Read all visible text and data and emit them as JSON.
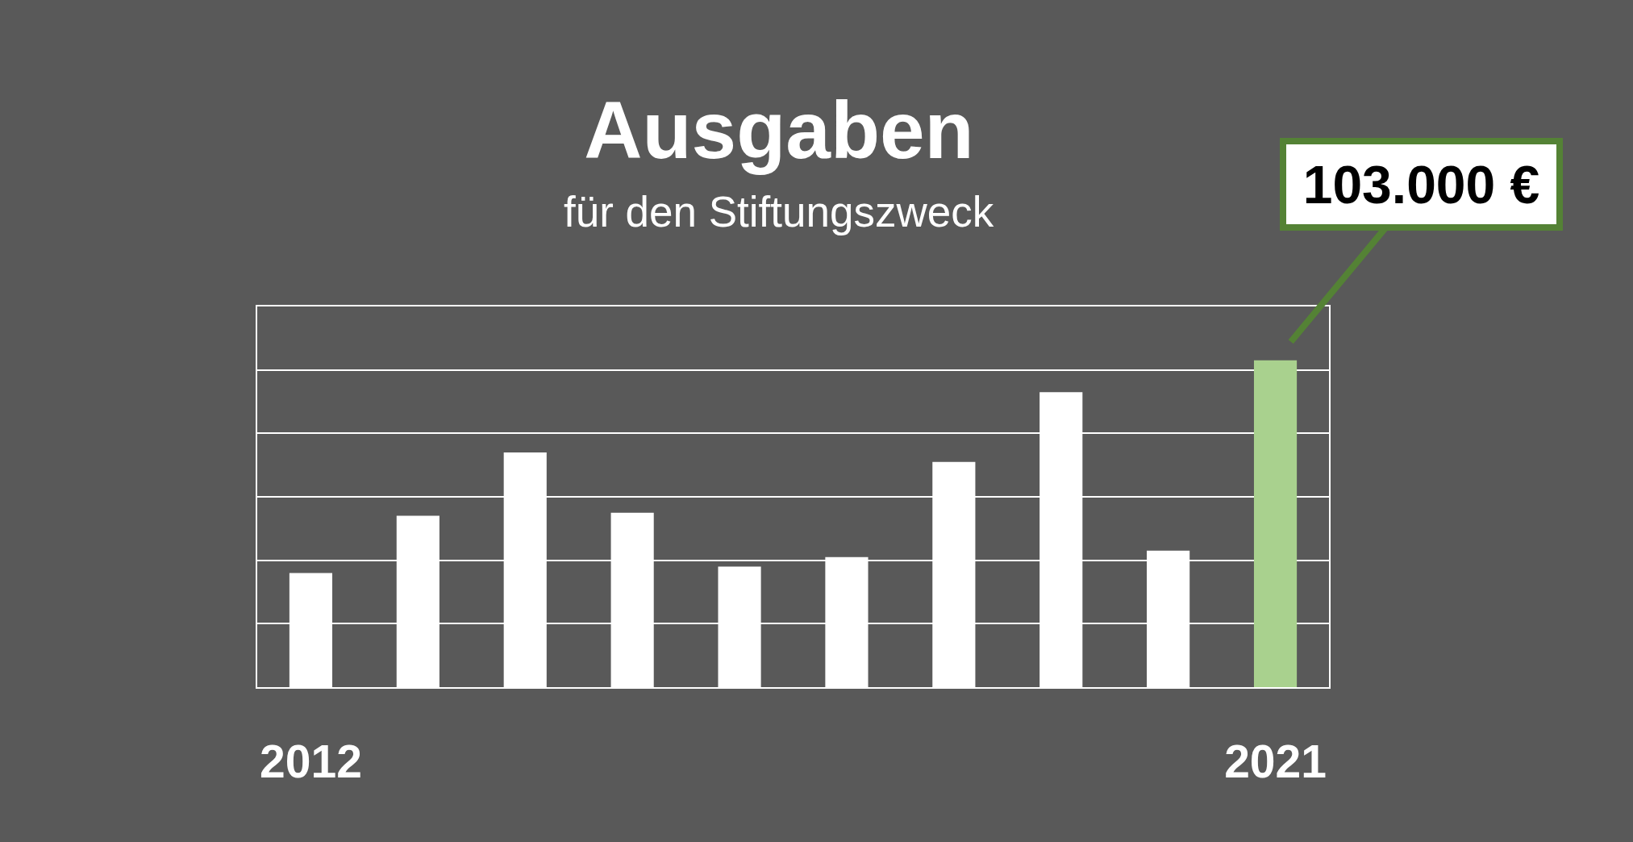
{
  "chart_data": {
    "type": "bar",
    "title": "Ausgaben",
    "subtitle": "für den Stiftungszweck",
    "categories": [
      "2012",
      null,
      null,
      null,
      null,
      null,
      null,
      null,
      null,
      "2021"
    ],
    "values": [
      36000,
      54000,
      74000,
      55000,
      38000,
      41000,
      71000,
      93000,
      43000,
      103000
    ],
    "colors": [
      "#ffffff",
      "#ffffff",
      "#ffffff",
      "#ffffff",
      "#ffffff",
      "#ffffff",
      "#ffffff",
      "#ffffff",
      "#ffffff",
      "#a9d18e"
    ],
    "value_labels": [
      null,
      null,
      null,
      null,
      null,
      null,
      null,
      null,
      null,
      "103.000 €"
    ],
    "ylim": [
      0,
      120000
    ],
    "yticks": [
      {
        "value": 0,
        "label": null
      },
      {
        "value": 20000,
        "label": null
      },
      {
        "value": 40000,
        "label": null
      },
      {
        "value": 60000,
        "label": null
      },
      {
        "value": 80000,
        "label": null
      },
      {
        "value": 100000,
        "label": null
      },
      {
        "value": 120000,
        "label": null
      }
    ],
    "grid": "y",
    "tick_labels": "x"
  }
}
